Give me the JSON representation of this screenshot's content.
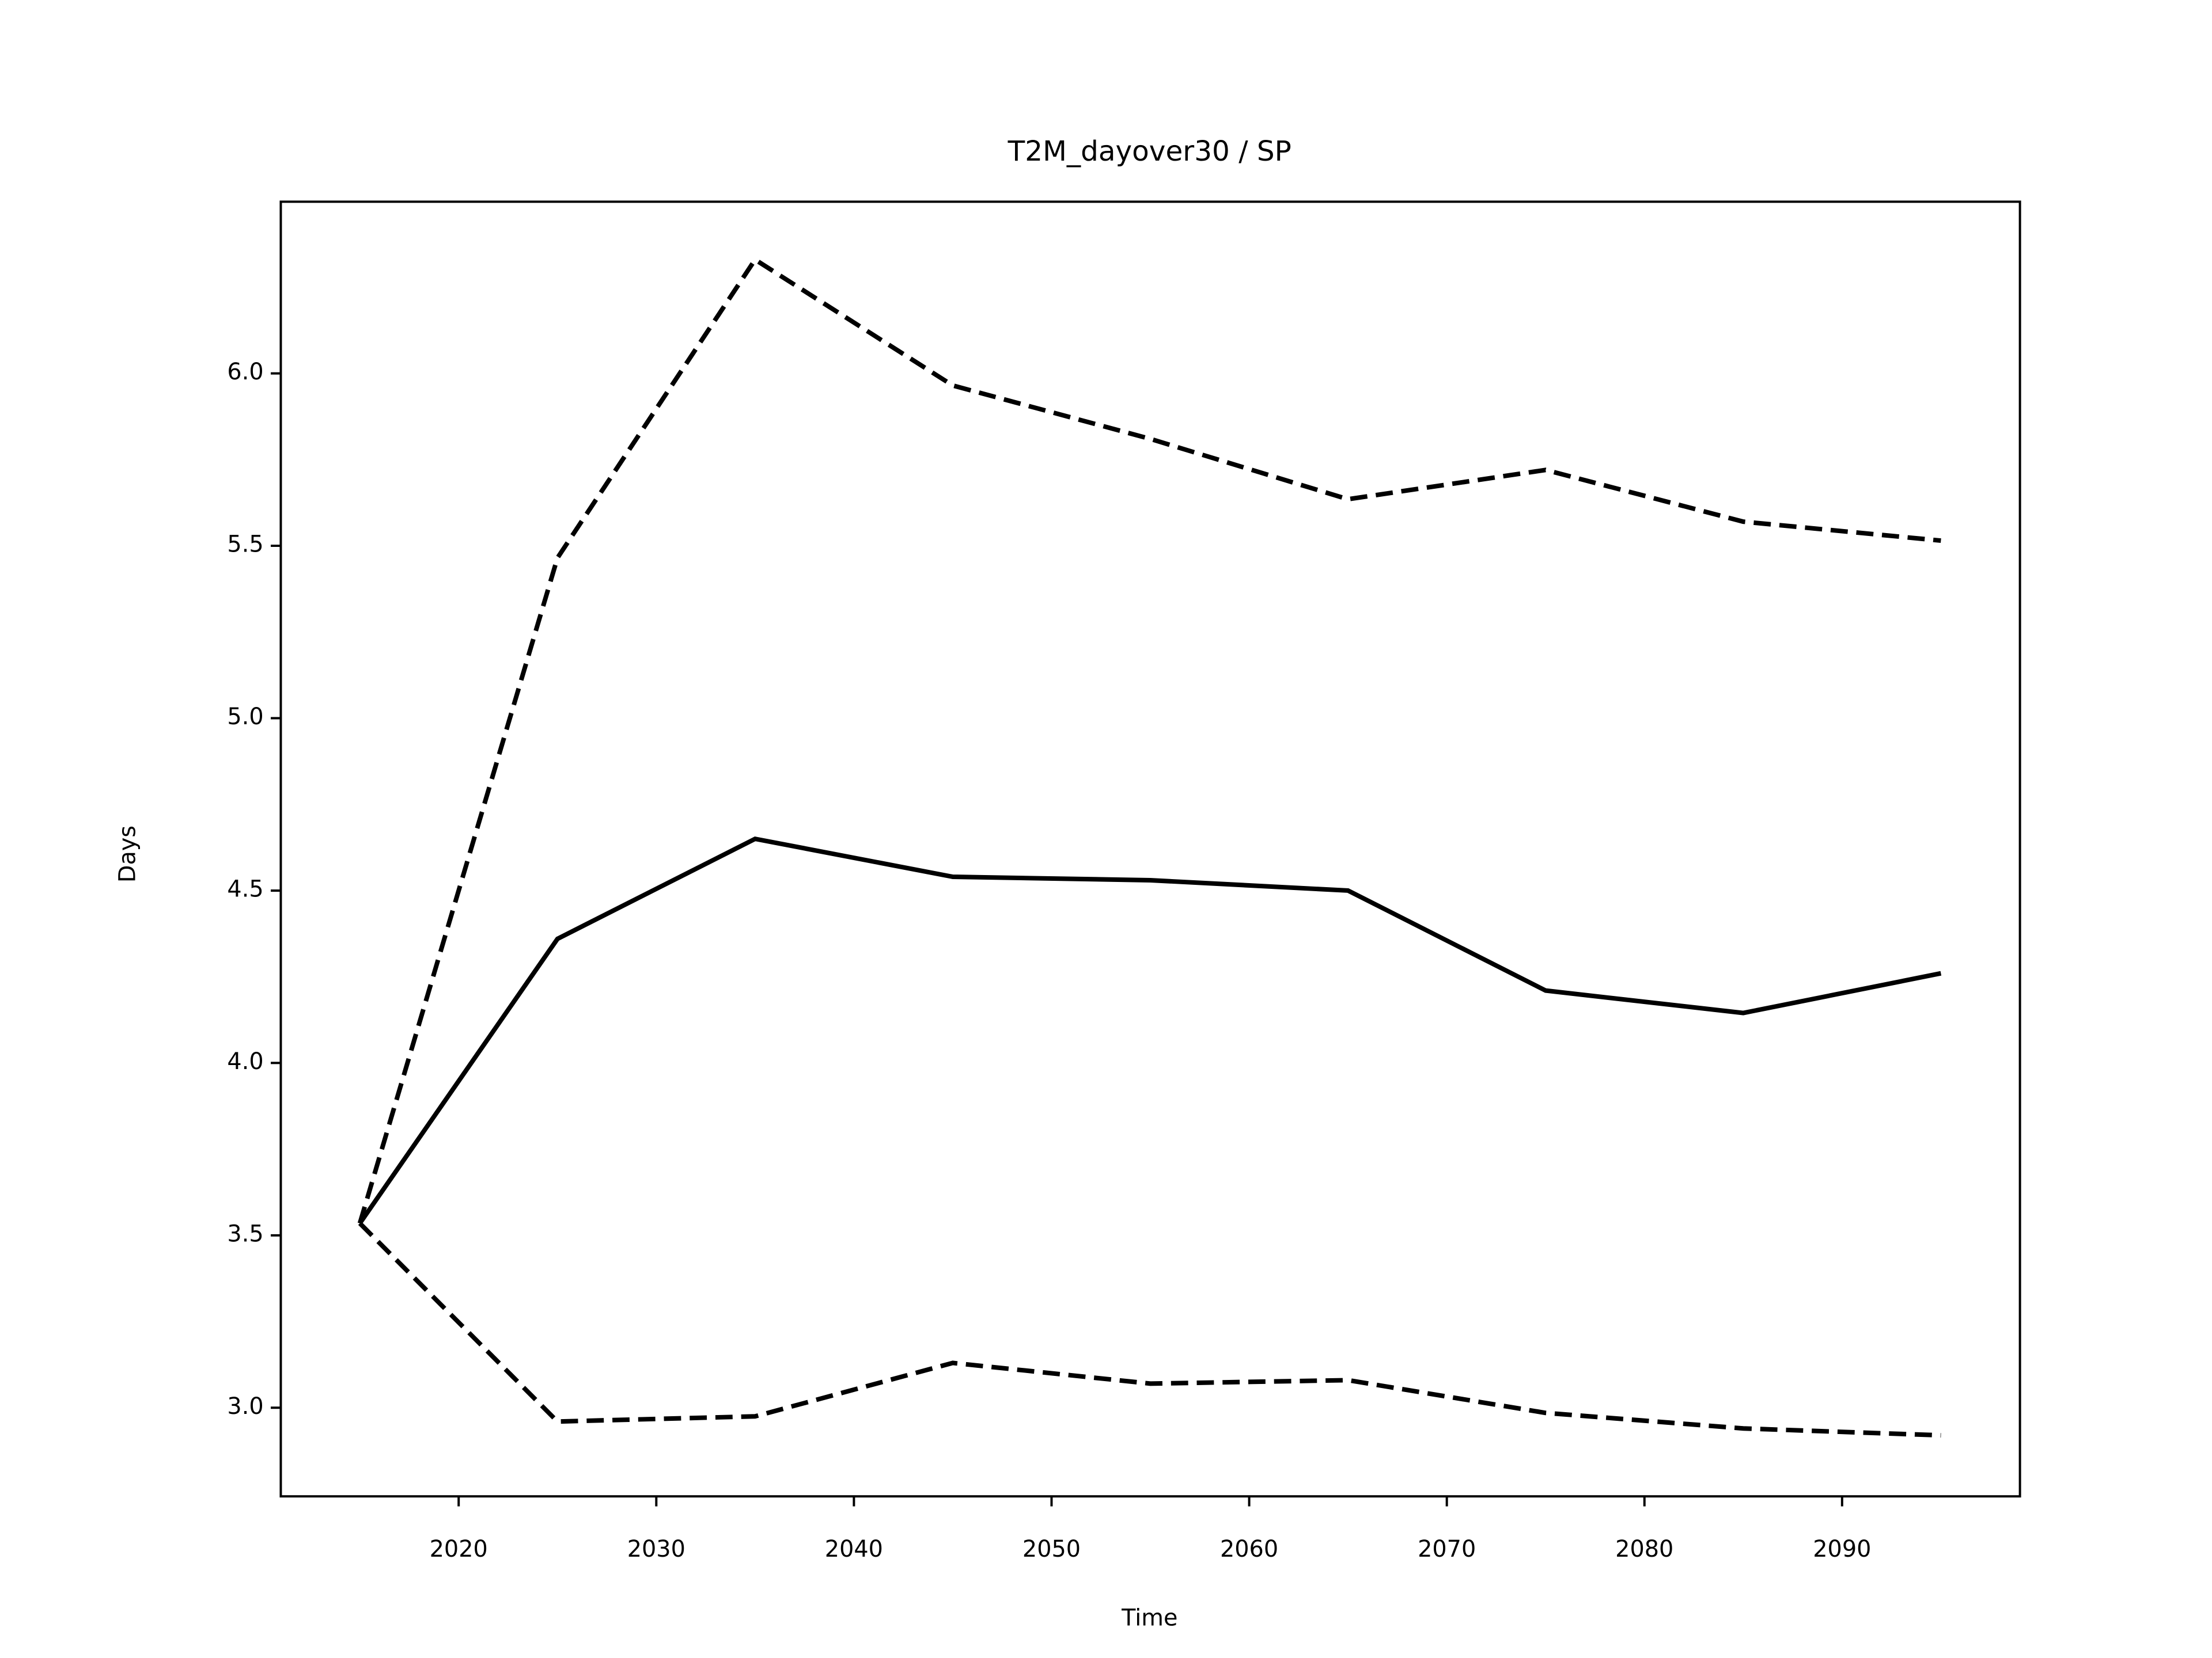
{
  "chart_data": {
    "type": "line",
    "title": "T2M_dayover30 / SP",
    "x_label": "Time",
    "y_label": "Days",
    "x": [
      2015,
      2025,
      2035,
      2045,
      2055,
      2065,
      2075,
      2085,
      2095
    ],
    "series": [
      {
        "color": "#000000",
        "line_style": "solid",
        "values": [
          3.535,
          4.36,
          4.65,
          4.54,
          4.53,
          4.5,
          4.21,
          4.145,
          4.26
        ]
      },
      {
        "color": "#000000",
        "line_style": "dashed",
        "values": [
          3.535,
          5.465,
          6.33,
          5.965,
          5.81,
          5.635,
          5.72,
          5.57,
          5.515
        ]
      },
      {
        "color": "#000000",
        "line_style": "dashed",
        "values": [
          3.535,
          2.96,
          2.975,
          3.13,
          3.07,
          3.08,
          2.985,
          2.94,
          2.92
        ]
      }
    ],
    "xlim": [
      2011,
      2099
    ],
    "xticks": [
      2020,
      2030,
      2040,
      2050,
      2060,
      2070,
      2080,
      2090
    ],
    "ylim": [
      2.743,
      6.498
    ],
    "yticks": [
      {
        "value": 3,
        "label": "3.0"
      },
      3.5,
      {
        "value": 4,
        "label": "4.0"
      },
      4.5,
      {
        "value": 5,
        "label": "5.0"
      },
      5.5,
      {
        "value": 6,
        "label": "6.0"
      }
    ],
    "grid": false
  }
}
